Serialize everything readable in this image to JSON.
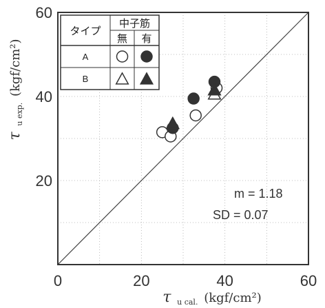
{
  "chart_data": {
    "type": "scatter",
    "xlim": [
      0,
      60
    ],
    "ylim": [
      0,
      60
    ],
    "x_ticks": [
      "0",
      "20",
      "40",
      "60"
    ],
    "y_ticks": [
      "20",
      "40",
      "60"
    ],
    "grid": true,
    "reference_line": "y = x",
    "xlabel": {
      "symbol": "τ",
      "sub": "u cal.",
      "unit": "(kgf/cm²)"
    },
    "ylabel": {
      "symbol": "τ",
      "sub": "u exp.",
      "unit": "(kgf/cm²)"
    },
    "legend": {
      "position": "top-left",
      "type_header": "タイプ",
      "group_header": "中子筋",
      "col_without": "無",
      "col_with": "有",
      "row_a": "A",
      "row_b": "B"
    },
    "series": [
      {
        "type": "A",
        "core_bar": "無",
        "marker": "circle-open",
        "points": [
          [
            25,
            31.5
          ],
          [
            27,
            30.5
          ],
          [
            33,
            35.5
          ],
          [
            38,
            42
          ]
        ]
      },
      {
        "type": "A",
        "core_bar": "有",
        "marker": "circle-filled",
        "points": [
          [
            27.5,
            32.5
          ],
          [
            32.5,
            39.5
          ],
          [
            37.5,
            43.5
          ]
        ]
      },
      {
        "type": "B",
        "core_bar": "無",
        "marker": "triangle-open",
        "points": [
          [
            27.5,
            33.5
          ],
          [
            37.5,
            40.5
          ]
        ]
      },
      {
        "type": "B",
        "core_bar": "有",
        "marker": "triangle-filled",
        "points": [
          [
            27.5,
            33.5
          ],
          [
            37.5,
            41.5
          ]
        ]
      }
    ],
    "annotations": {
      "m": "m = 1.18",
      "sd": "SD = 0.07"
    }
  }
}
